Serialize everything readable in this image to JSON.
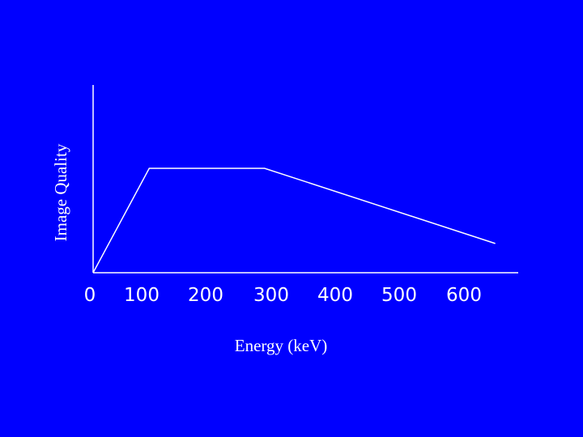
{
  "chart_data": {
    "type": "line",
    "title": "",
    "xlabel": "Energy (keV)",
    "ylabel": "Image Quality",
    "x_ticks": [
      0,
      100,
      200,
      300,
      400,
      500,
      600
    ],
    "xlim": [
      0,
      660
    ],
    "ylim": [
      0,
      1
    ],
    "grid": false,
    "series": [
      {
        "x": [
          0,
          90,
          275,
          645
        ],
        "y": [
          0,
          1,
          1,
          0.28
        ]
      }
    ],
    "colors": {
      "background": "#0000ff",
      "line": "#ffffff",
      "axis": "#ffffff",
      "text": "#ffffff"
    }
  }
}
